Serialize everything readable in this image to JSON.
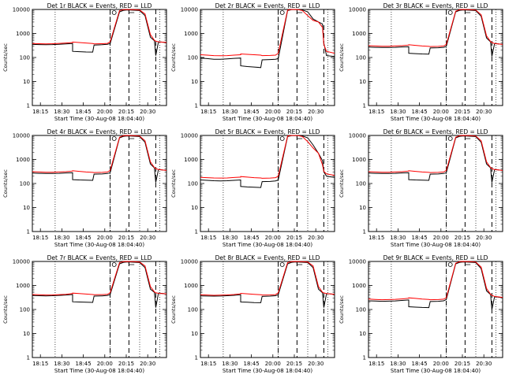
{
  "chart_data": {
    "type": "line",
    "ylabel": "Counts/sec",
    "xlabel": "Start Time (30-Aug-08 18:04:40)",
    "y_scale": "log",
    "ylim": [
      1,
      10000
    ],
    "y_ticks": [
      1,
      10,
      100,
      1000,
      10000
    ],
    "y_tick_labels": [
      "1",
      "10",
      "100",
      "1000",
      "10000"
    ],
    "x_tick_labels": [
      "18:15",
      "18:30",
      "18:45",
      "20:00",
      "20:15",
      "20:30"
    ],
    "legend": {
      "black": "Events",
      "red": "LLD"
    },
    "colors": {
      "events": "#000000",
      "lld": "#ff0000"
    },
    "panels": [
      {
        "title": "Det 1r BLACK = Events, RED = LLD",
        "events": [
          350,
          345,
          340,
          345,
          355,
          370,
          380,
          180,
          175,
          170,
          168,
          330,
          340,
          355,
          380,
          8000,
          9200,
          9500,
          9400,
          9300,
          9000,
          5500,
          700,
          500,
          120,
          450,
          420
        ],
        "lld": [
          380,
          375,
          370,
          375,
          385,
          400,
          420,
          440,
          420,
          400,
          380,
          370,
          375,
          385,
          450,
          9000,
          9800,
          10000,
          9900,
          9800,
          9500,
          6500,
          900,
          520,
          480,
          450,
          420
        ]
      },
      {
        "title": "Det 2r BLACK = Events, RED = LLD",
        "events": [
          95,
          90,
          85,
          85,
          88,
          92,
          95,
          45,
          42,
          40,
          38,
          80,
          82,
          85,
          90,
          9000,
          9800,
          9900,
          9800,
          9500,
          8000,
          4000,
          3000,
          2500,
          400,
          120,
          110
        ],
        "lld": [
          130,
          125,
          120,
          118,
          120,
          125,
          130,
          140,
          135,
          130,
          125,
          120,
          122,
          125,
          150,
          9500,
          10000,
          10000,
          9800,
          9000,
          5500,
          3500,
          3000,
          1800,
          350,
          180,
          150
        ]
      },
      {
        "title": "Det 3r BLACK = Events, RED = LLD",
        "events": [
          270,
          265,
          260,
          260,
          265,
          275,
          280,
          150,
          145,
          140,
          138,
          250,
          255,
          265,
          290,
          8000,
          9200,
          9500,
          9400,
          9300,
          9000,
          5200,
          650,
          450,
          110,
          380,
          350
        ],
        "lld": [
          310,
          300,
          295,
          295,
          300,
          310,
          330,
          340,
          320,
          300,
          290,
          285,
          290,
          300,
          350,
          8500,
          9800,
          10000,
          9900,
          9800,
          9400,
          6000,
          800,
          460,
          420,
          380,
          350
        ]
      },
      {
        "title": "Det 4r BLACK = Events, RED = LLD",
        "events": [
          270,
          265,
          260,
          260,
          265,
          275,
          280,
          145,
          140,
          138,
          135,
          245,
          250,
          260,
          280,
          8000,
          9200,
          9500,
          9400,
          9300,
          9000,
          5200,
          650,
          450,
          110,
          380,
          350
        ],
        "lld": [
          310,
          300,
          295,
          295,
          300,
          310,
          330,
          340,
          320,
          300,
          290,
          285,
          290,
          300,
          350,
          8500,
          9800,
          10000,
          9900,
          9800,
          9400,
          6000,
          800,
          460,
          420,
          380,
          350
        ]
      },
      {
        "title": "Det 5r BLACK = Events, RED = LLD",
        "events": [
          140,
          135,
          130,
          128,
          130,
          135,
          140,
          75,
          72,
          70,
          68,
          120,
          122,
          128,
          140,
          9000,
          9800,
          9900,
          9800,
          9500,
          8000,
          4000,
          1800,
          900,
          300,
          200,
          180
        ],
        "lld": [
          180,
          175,
          170,
          168,
          170,
          178,
          185,
          195,
          185,
          175,
          170,
          165,
          168,
          175,
          200,
          9500,
          10000,
          10000,
          9800,
          9000,
          5500,
          3000,
          1800,
          600,
          320,
          250,
          220
        ]
      },
      {
        "title": "Det 6r BLACK = Events, RED = LLD",
        "events": [
          270,
          265,
          260,
          260,
          265,
          275,
          280,
          145,
          140,
          138,
          135,
          245,
          250,
          260,
          280,
          8000,
          9200,
          9500,
          9400,
          9300,
          9000,
          5200,
          650,
          450,
          110,
          380,
          350
        ],
        "lld": [
          310,
          300,
          295,
          295,
          300,
          310,
          330,
          340,
          320,
          300,
          290,
          285,
          290,
          300,
          350,
          8500,
          9800,
          10000,
          9900,
          9800,
          9400,
          6000,
          800,
          460,
          420,
          380,
          350
        ]
      },
      {
        "title": "Det 7r BLACK = Events, RED = LLD",
        "events": [
          380,
          375,
          370,
          375,
          385,
          400,
          420,
          210,
          205,
          200,
          198,
          360,
          370,
          385,
          420,
          8000,
          9200,
          9500,
          9400,
          9300,
          9000,
          5500,
          700,
          520,
          120,
          480,
          450
        ],
        "lld": [
          420,
          410,
          400,
          405,
          415,
          430,
          460,
          480,
          460,
          440,
          420,
          410,
          415,
          425,
          500,
          9000,
          9800,
          10000,
          9900,
          9800,
          9500,
          6500,
          900,
          540,
          500,
          470,
          450
        ]
      },
      {
        "title": "Det 8r BLACK = Events, RED = LLD",
        "events": [
          370,
          365,
          360,
          365,
          375,
          390,
          410,
          205,
          200,
          195,
          192,
          350,
          360,
          375,
          410,
          8000,
          9200,
          9500,
          9400,
          9300,
          9000,
          5500,
          700,
          500,
          120,
          460,
          430
        ],
        "lld": [
          410,
          400,
          390,
          395,
          405,
          420,
          450,
          470,
          450,
          430,
          410,
          400,
          405,
          415,
          490,
          9000,
          9800,
          10000,
          9900,
          9800,
          9500,
          6500,
          900,
          520,
          490,
          460,
          430
        ]
      },
      {
        "title": "Det 9r BLACK = Events, RED = LLD",
        "events": [
          230,
          225,
          220,
          222,
          228,
          238,
          250,
          130,
          125,
          122,
          120,
          215,
          220,
          230,
          260,
          8000,
          9200,
          9500,
          9400,
          9300,
          9000,
          5000,
          600,
          420,
          100,
          340,
          310
        ],
        "lld": [
          270,
          262,
          255,
          258,
          265,
          275,
          295,
          305,
          290,
          270,
          260,
          255,
          258,
          268,
          310,
          8500,
          9800,
          10000,
          9900,
          9800,
          9400,
          5800,
          750,
          430,
          390,
          350,
          320
        ]
      }
    ]
  }
}
